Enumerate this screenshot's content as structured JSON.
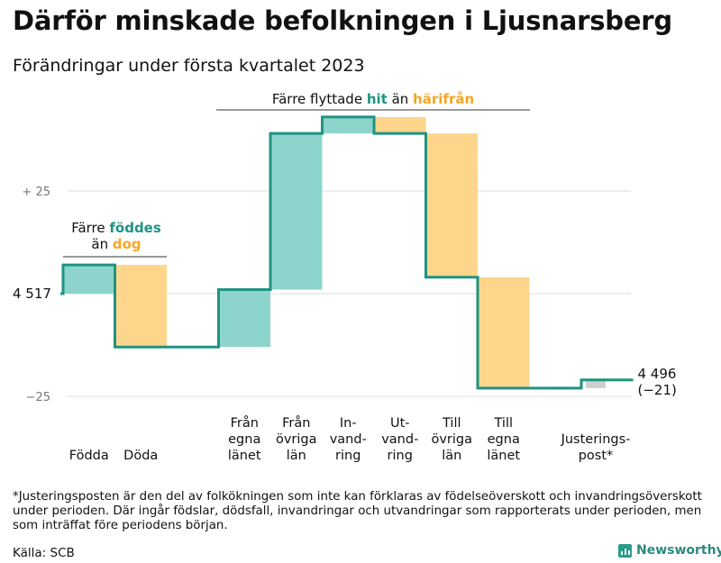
{
  "title": "Därför minskade befolkningen i Ljusnarsberg",
  "subtitle": "Förändringar under första kvartalet 2023",
  "footnote": "*Justeringsposten är den del av folkökningen som inte kan förklaras av födelseöverskott och invandringsöverskott under perioden. Där ingår födslar, dödsfall, invandringar och utvandringar som rapporterats under perioden, men som inträffat före periodens början.",
  "source": "Källa: SCB",
  "brand": "Newsworthy",
  "colors": {
    "teal_fill": "#8dd5cc",
    "orange_fill": "#fdd68c",
    "line": "#1f9381",
    "grey_fill": "#cfcfcf",
    "teal_text": "#1f9381",
    "orange_text": "#f5a623",
    "grid": "#dddddd",
    "axis_text": "#777777"
  },
  "chart_data": {
    "type": "waterfall",
    "title": "Därför minskade befolkningen i Ljusnarsberg",
    "subtitle": "Förändringar under första kvartalet 2023",
    "start": 4517,
    "end": 4496,
    "net_change": -21,
    "start_label": "4 517",
    "end_label": "4 496",
    "net_label": "(−21)",
    "baseline": 4517,
    "yaxis": {
      "ticks": [
        25,
        -25
      ],
      "tick_labels": [
        "+ 25",
        "−25"
      ],
      "range": [
        -28,
        45
      ]
    },
    "steps": [
      {
        "label": "Födda",
        "value": 7,
        "direction": "in"
      },
      {
        "label": "Döda",
        "value": -20,
        "direction": "out"
      },
      {
        "label": "",
        "value": 0,
        "direction": "none"
      },
      {
        "label": "Från egna länet",
        "value": 14,
        "direction": "in"
      },
      {
        "label": "Från övriga län",
        "value": 38,
        "direction": "in"
      },
      {
        "label": "In-vand-ring",
        "value": 4,
        "direction": "in"
      },
      {
        "label": "Ut-vand-ring",
        "value": -4,
        "direction": "out"
      },
      {
        "label": "Till övriga län",
        "value": -35,
        "direction": "out"
      },
      {
        "label": "Till egna länet",
        "value": -27,
        "direction": "out"
      },
      {
        "label": "",
        "value": 0,
        "direction": "none"
      },
      {
        "label": "Justerings-post*",
        "value": 2,
        "direction": "adjust"
      }
    ],
    "annotations": [
      {
        "text_before": "Färre ",
        "text_hit": "föddes",
        "text_mid": "än ",
        "text_out": "dog",
        "span": [
          "Födda",
          "Döda"
        ]
      },
      {
        "text_before": "Färre flyttade ",
        "text_hit": "hit",
        "text_mid": " än ",
        "text_out": "härifrån",
        "span": [
          "Från egna länet",
          "Till egna länet"
        ]
      }
    ]
  }
}
